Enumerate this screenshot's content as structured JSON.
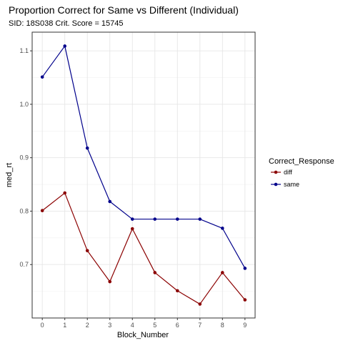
{
  "chart_data": {
    "type": "line",
    "title": "Proportion Correct for Same vs Different (Individual)",
    "subtitle": "SID:  18S038 Crit. Score =  15745",
    "xlabel": "Block_Number",
    "ylabel": "med_rt",
    "x": [
      0,
      1,
      2,
      3,
      4,
      5,
      6,
      7,
      8,
      9
    ],
    "x_tick_labels": [
      "0",
      "1",
      "2",
      "3",
      "4",
      "5",
      "6",
      "7",
      "8",
      "9"
    ],
    "y_ticks": [
      0.7,
      0.8,
      0.9,
      1.0,
      1.1
    ],
    "y_tick_labels": [
      "0.7",
      "0.8",
      "0.9",
      "1.0",
      "1.1"
    ],
    "xlim": [
      -0.45,
      9.45
    ],
    "ylim": [
      0.6,
      1.135
    ],
    "grid": true,
    "legend_position": "right",
    "legend_title": "Correct_Response",
    "series": [
      {
        "name": "diff",
        "color": "#8b0000",
        "values": [
          0.801,
          0.834,
          0.726,
          0.668,
          0.767,
          0.685,
          0.651,
          0.626,
          0.685,
          0.634
        ]
      },
      {
        "name": "same",
        "color": "#00008b",
        "values": [
          1.051,
          1.109,
          0.918,
          0.818,
          0.785,
          0.785,
          0.785,
          0.785,
          0.768,
          0.693
        ]
      }
    ]
  }
}
